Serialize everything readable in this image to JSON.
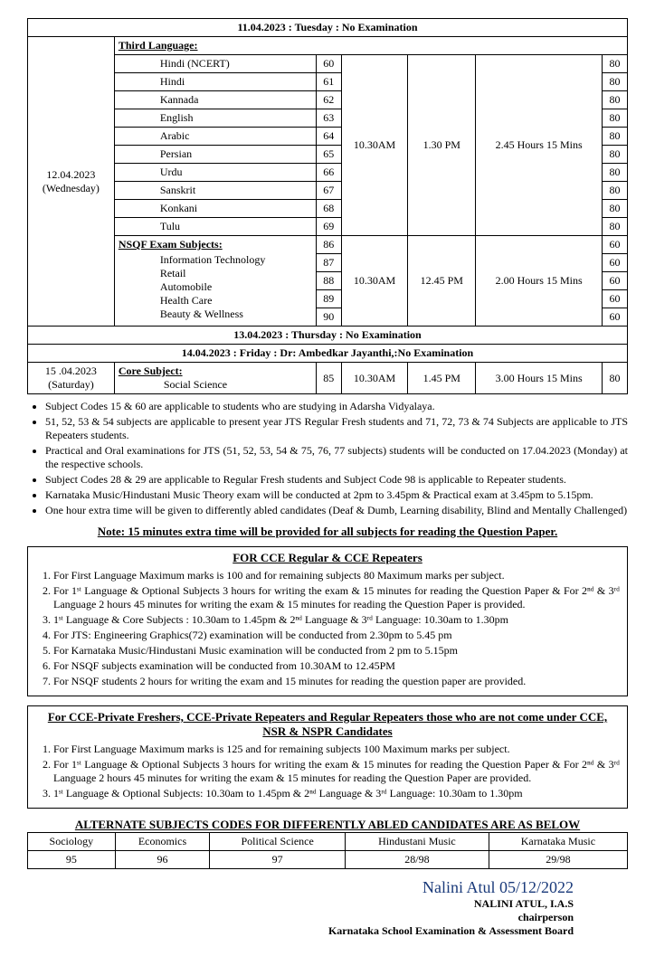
{
  "no_exam_1": "11.04.2023  :  Tuesday  :  No Examination",
  "date1": "12.04.2023",
  "day1": "(Wednesday)",
  "third_lang_header": "Third Language:",
  "third_lang": {
    "r1_name": "Hindi (NCERT)",
    "r1_code": "60",
    "r2_name": "Hindi",
    "r2_code": "61",
    "r3_name": "Kannada",
    "r3_code": "62",
    "r4_name": "English",
    "r4_code": "63",
    "r5_name": "Arabic",
    "r5_code": "64",
    "r6_name": "Persian",
    "r6_code": "65",
    "r7_name": "Urdu",
    "r7_code": "66",
    "r8_name": "Sanskrit",
    "r8_code": "67",
    "r9_name": "Konkani",
    "r9_code": "68",
    "r10_name": "Tulu",
    "r10_code": "69"
  },
  "tl_start": "10.30AM",
  "tl_end": "1.30 PM",
  "tl_dur": "2.45 Hours 15 Mins",
  "tl_marks": "80",
  "nsqf_header": "NSQF Exam Subjects:",
  "nsqf": {
    "r1_name": "Information Technology",
    "r1_code": "86",
    "r2_name": "Retail",
    "r2_code": "87",
    "r3_name": "Automobile",
    "r3_code": "88",
    "r4_name": "Health Care",
    "r4_code": "89",
    "r5_name": "Beauty & Wellness",
    "r5_code": "90"
  },
  "nsqf_start": "10.30AM",
  "nsqf_end": "12.45 PM",
  "nsqf_dur": "2.00 Hours 15 Mins",
  "nsqf_marks": "60",
  "no_exam_2": "13.04.2023  :  Thursday  :  No Examination",
  "no_exam_3": "14.04.2023  :  Friday  :  Dr: Ambedkar Jayanthi,:No Examination",
  "date2": "15 .04.2023",
  "day2": "(Saturday)",
  "core_header": "Core Subject:",
  "core_name": "Social Science",
  "core_code": "85",
  "core_start": "10.30AM",
  "core_end": "1.45 PM",
  "core_dur": "3.00 Hours 15 Mins",
  "core_marks": "80",
  "bullets": {
    "b1": "Subject Codes 15 & 60 are applicable to students who are studying in Adarsha Vidyalaya.",
    "b2": "51, 52, 53 & 54 subjects are applicable to present year JTS Regular Fresh students and 71, 72, 73 & 74 Subjects are applicable to JTS Repeaters students.",
    "b3": "Practical and Oral examinations for JTS (51, 52, 53, 54 & 75, 76, 77 subjects) students will be conducted on 17.04.2023 (Monday) at the respective schools.",
    "b4": "Subject Codes 28 & 29 are applicable to Regular Fresh students and Subject Code 98 is applicable to Repeater students.",
    "b5": "Karnataka Music/Hindustani Music Theory exam will be conducted at 2pm to 3.45pm & Practical exam at 3.45pm to 5.15pm.",
    "b6": "One hour extra time will be given to differently abled candidates (Deaf & Dumb, Learning disability, Blind and Mentally Challenged)"
  },
  "note_line": "Note: 15 minutes extra time will be provided for all subjects for reading the Question Paper.",
  "box1": {
    "title": "FOR CCE Regular & CCE Repeaters",
    "i1": "For First Language Maximum marks is 100 and for remaining subjects 80 Maximum marks per subject.",
    "i2": "For 1ˢᵗ Language & Optional Subjects 3 hours for writing the exam & 15 minutes for reading the Question Paper & For 2ⁿᵈ & 3ʳᵈ Language 2 hours 45 minutes for writing the exam & 15 minutes for reading the Question Paper is provided.",
    "i3": "1ˢᵗ Language & Core Subjects : 10.30am to 1.45pm & 2ⁿᵈ Language & 3ʳᵈ Language: 10.30am to 1.30pm",
    "i4": "For JTS: Engineering Graphics(72) examination will be conducted from  2.30pm to 5.45 pm",
    "i5": "For Karnataka Music/Hindustani Music examination will be conducted from 2 pm to 5.15pm",
    "i6": "For NSQF subjects examination will be conducted from 10.30AM to 12.45PM",
    "i7": "For NSQF students 2 hours for writing the exam and 15 minutes for reading the question paper are provided."
  },
  "box2": {
    "title": "For CCE-Private Freshers, CCE-Private Repeaters and Regular Repeaters those who are not come under CCE, NSR & NSPR Candidates",
    "i1": "For First Language Maximum marks is 125 and for remaining subjects 100 Maximum marks per subject.",
    "i2": "For 1ˢᵗ Language & Optional Subjects 3 hours for writing the exam & 15 minutes for reading the Question Paper & For 2ⁿᵈ & 3ʳᵈ Language 2 hours 45 minutes for writing the exam & 15 minutes for reading the Question Paper are provided.",
    "i3": "1ˢᵗ Language & Optional Subjects: 10.30am to 1.45pm & 2ⁿᵈ Language & 3ʳᵈ Language: 10.30am to 1.30pm"
  },
  "alt_title": "ALTERNATE SUBJECTS CODES FOR DIFFERENTLY ABLED CANDIDATES ARE AS BELOW",
  "alt": {
    "h1": "Sociology",
    "v1": "95",
    "h2": "Economics",
    "v2": "96",
    "h3": "Political Science",
    "v3": "97",
    "h4": "Hindustani Music",
    "v4": "28/98",
    "h5": "Karnataka Music",
    "v5": "29/98"
  },
  "sig": {
    "script": "Nalini Atul 05/12/2022",
    "name": "NALINI ATUL, I.A.S",
    "role": "chairperson",
    "org": "Karnataka School Examination & Assessment Board"
  }
}
